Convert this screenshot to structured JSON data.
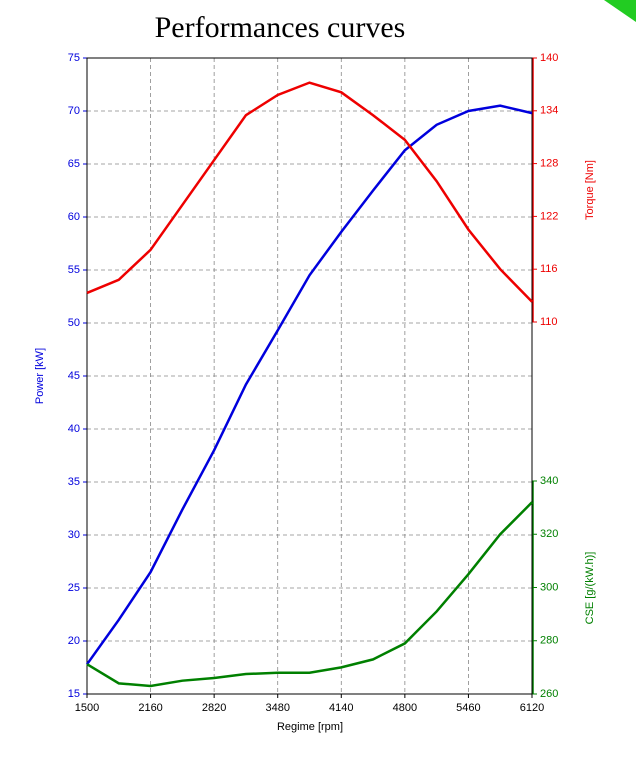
{
  "chart_data": {
    "type": "line",
    "title": "Performances curves",
    "xlabel": "Regime [rpm]",
    "ylabel": "Power [kW]",
    "y2label": "Torque [Nm]",
    "y3label": "CSE [g/(kW.h)]",
    "x": [
      1500,
      1830,
      2160,
      2490,
      2820,
      3150,
      3480,
      3810,
      4140,
      4470,
      4800,
      5130,
      5460,
      5790,
      6120
    ],
    "series": [
      {
        "name": "Power [kW]",
        "color": "#0000dd",
        "axis": "y",
        "values": [
          17.8,
          22,
          26.5,
          32.4,
          38,
          44.2,
          49.3,
          54.5,
          58.6,
          62.5,
          66.3,
          68.7,
          70,
          70.5,
          69.8
        ]
      },
      {
        "name": "Torque [Nm]",
        "color": "#ee0000",
        "axis": "y2",
        "values": [
          113.3,
          114.8,
          118.2,
          123.3,
          128.4,
          133.5,
          135.8,
          137.2,
          136.1,
          133.5,
          130.7,
          126,
          120.5,
          116,
          112.3
        ]
      },
      {
        "name": "CSE [g/(kW.h)]",
        "color": "#008000",
        "axis": "y3",
        "values": [
          271.2,
          264,
          263,
          265,
          266,
          267.5,
          268,
          268,
          270,
          273,
          279,
          291,
          305,
          320,
          332
        ]
      }
    ],
    "xlim": [
      1500,
      6120
    ],
    "xticks": [
      1500,
      2160,
      2820,
      3480,
      4140,
      4800,
      5460,
      6120
    ],
    "ylim": [
      15,
      75
    ],
    "yticks": [
      15,
      20,
      25,
      30,
      35,
      40,
      45,
      50,
      55,
      60,
      65,
      70,
      75
    ],
    "y2lim": [
      110,
      140
    ],
    "y2ticks": [
      110,
      116,
      122,
      128,
      134,
      140
    ],
    "y3lim": [
      260,
      340
    ],
    "y3ticks": [
      260,
      280,
      300,
      320,
      340
    ],
    "grid": true
  }
}
